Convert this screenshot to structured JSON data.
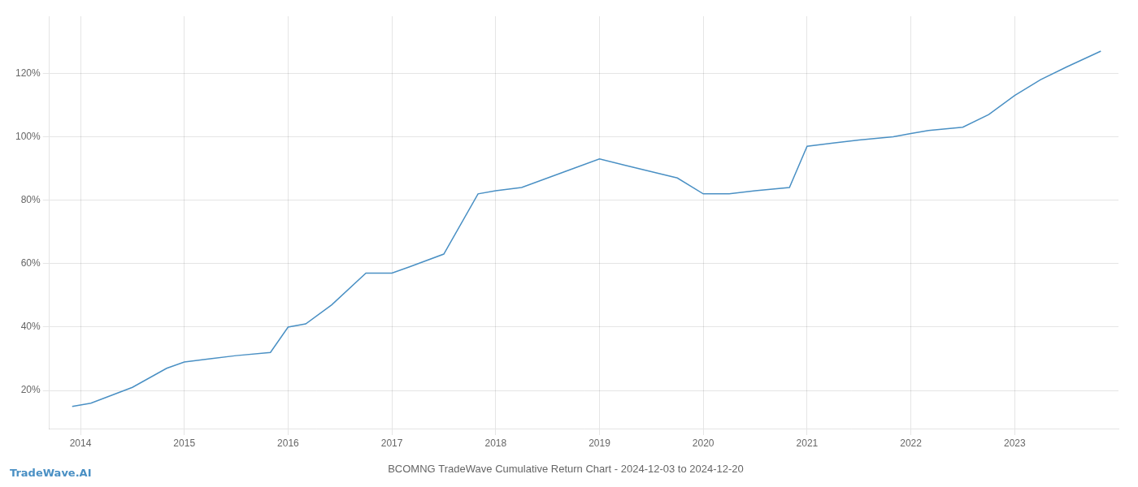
{
  "chart_data": {
    "type": "line",
    "title": "BCOMNG TradeWave Cumulative Return Chart - 2024-12-03 to 2024-12-20",
    "annotations": [
      {
        "text": "TradeWave.AI",
        "color": "#4a90c4"
      }
    ],
    "x": [
      2013.92,
      2014.1,
      2014.5,
      2014.83,
      2015.0,
      2015.25,
      2015.5,
      2015.83,
      2016.0,
      2016.17,
      2016.42,
      2016.75,
      2017.0,
      2017.17,
      2017.5,
      2017.83,
      2018.0,
      2018.25,
      2018.5,
      2018.75,
      2019.0,
      2019.25,
      2019.5,
      2019.75,
      2020.0,
      2020.25,
      2020.5,
      2020.83,
      2021.0,
      2021.25,
      2021.5,
      2021.83,
      2022.0,
      2022.17,
      2022.5,
      2022.75,
      2023.0,
      2023.25,
      2023.5,
      2023.83
    ],
    "values": [
      15,
      16,
      21,
      27,
      29,
      30,
      31,
      32,
      40,
      41,
      47,
      57,
      57,
      59,
      63,
      82,
      83,
      84,
      87,
      90,
      93,
      91,
      89,
      87,
      82,
      82,
      83,
      84,
      97,
      98,
      99,
      100,
      101,
      102,
      103,
      107,
      113,
      118,
      122,
      127
    ],
    "color": "#4a90c4",
    "xlim": [
      2013.7,
      2024.0
    ],
    "xticks": [
      2014,
      2015,
      2016,
      2017,
      2018,
      2019,
      2020,
      2021,
      2022,
      2023
    ],
    "ylim": [
      8,
      138
    ],
    "yticks": [
      {
        "value": 20,
        "label": "20%"
      },
      {
        "value": 40,
        "label": "40%"
      },
      {
        "value": 60,
        "label": "60%"
      },
      {
        "value": 80,
        "label": "80%"
      },
      {
        "value": 100,
        "label": "100%"
      },
      {
        "value": 120,
        "label": "120%"
      }
    ],
    "grid": true
  }
}
